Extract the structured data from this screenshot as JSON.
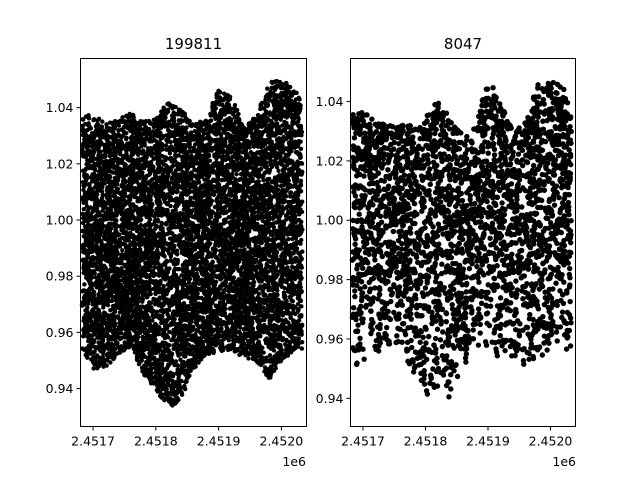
{
  "chart_data": [
    {
      "type": "scatter",
      "title": "199811",
      "xlabel": "",
      "ylabel": "",
      "x_offset_label": "1e6",
      "xlim": [
        2.45168,
        2.45204
      ],
      "ylim": [
        0.9265,
        1.0575
      ],
      "x_ticks": [
        2.4517,
        2.4518,
        2.4519,
        2.452
      ],
      "x_tick_labels": [
        "2.4517",
        "2.4518",
        "2.4519",
        "2.4520"
      ],
      "y_ticks": [
        0.94,
        0.96,
        0.98,
        1.0,
        1.02,
        1.04
      ],
      "y_tick_labels": [
        "0.94",
        "0.96",
        "0.98",
        "1.00",
        "1.02",
        "1.04"
      ],
      "marker_color": "#000000",
      "n_points": 199811,
      "density": "dense",
      "x_range": [
        2.451683,
        2.452033
      ],
      "envelope": {
        "x": [
          2.45168,
          2.4517,
          2.45172,
          2.45174,
          2.45176,
          2.45178,
          2.4518,
          2.45182,
          2.45184,
          2.45186,
          2.45188,
          2.4519,
          2.45192,
          2.45194,
          2.45196,
          2.45198,
          2.452,
          2.45202,
          2.45204
        ],
        "upper": [
          1.036,
          1.038,
          1.034,
          1.036,
          1.038,
          1.035,
          1.036,
          1.043,
          1.04,
          1.034,
          1.036,
          1.047,
          1.044,
          1.033,
          1.037,
          1.049,
          1.05,
          1.047,
          1.038
        ],
        "lower": [
          0.955,
          0.947,
          0.947,
          0.952,
          0.955,
          0.945,
          0.94,
          0.933,
          0.936,
          0.947,
          0.952,
          0.953,
          0.954,
          0.951,
          0.95,
          0.943,
          0.95,
          0.953,
          0.953
        ]
      }
    },
    {
      "type": "scatter",
      "title": "8047",
      "xlabel": "",
      "ylabel": "",
      "x_offset_label": "1e6",
      "xlim": [
        2.45168,
        2.45204
      ],
      "ylim": [
        0.9305,
        1.0545
      ],
      "x_ticks": [
        2.4517,
        2.4518,
        2.4519,
        2.452
      ],
      "x_tick_labels": [
        "2.4517",
        "2.4518",
        "2.4519",
        "2.4520"
      ],
      "y_ticks": [
        0.94,
        0.96,
        0.98,
        1.0,
        1.02,
        1.04
      ],
      "y_tick_labels": [
        "0.94",
        "0.96",
        "0.98",
        "1.00",
        "1.02",
        "1.04"
      ],
      "marker_color": "#000000",
      "n_points": 8047,
      "density": "sparse",
      "x_range": [
        2.451683,
        2.452033
      ],
      "envelope": {
        "x": [
          2.45168,
          2.4517,
          2.45172,
          2.45174,
          2.45176,
          2.45178,
          2.4518,
          2.45182,
          2.45184,
          2.45186,
          2.45188,
          2.4519,
          2.45192,
          2.45194,
          2.45196,
          2.45198,
          2.452,
          2.45202,
          2.45204
        ],
        "upper": [
          1.036,
          1.037,
          1.033,
          1.032,
          1.032,
          1.033,
          1.036,
          1.04,
          1.035,
          1.028,
          1.032,
          1.047,
          1.044,
          1.03,
          1.033,
          1.046,
          1.047,
          1.045,
          1.035
        ],
        "lower": [
          0.948,
          0.948,
          0.952,
          0.957,
          0.956,
          0.947,
          0.94,
          0.937,
          0.94,
          0.951,
          0.956,
          0.955,
          0.954,
          0.952,
          0.95,
          0.953,
          0.952,
          0.955,
          0.955
        ]
      }
    }
  ]
}
